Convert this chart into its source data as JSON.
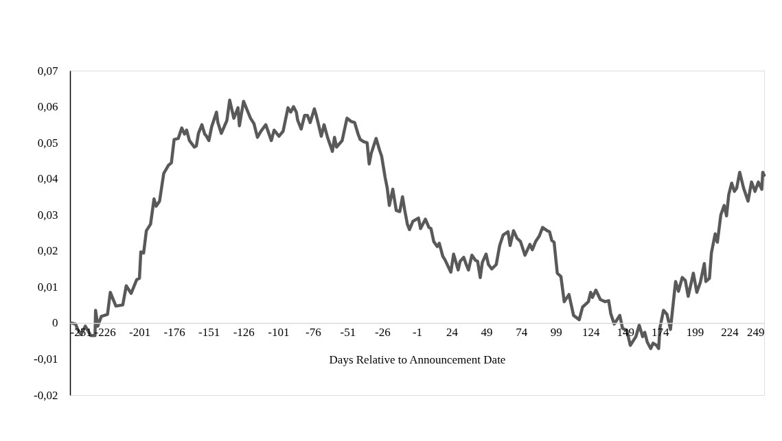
{
  "chart_data": {
    "type": "line",
    "xlabel": "Days Relative to Announcement Date",
    "x": [
      -250,
      -247,
      -245.5,
      -243,
      -240,
      -236,
      -233,
      -232.6,
      -231,
      -228.5,
      -224,
      -222,
      -218,
      -213,
      -210.5,
      -207,
      -203,
      -201,
      -200,
      -198,
      -196,
      -193,
      -190.5,
      -189,
      -186.5,
      -183.5,
      -180,
      -178,
      -176,
      -173,
      -170.5,
      -168.5,
      -167,
      -165,
      -161.5,
      -160,
      -158.5,
      -156,
      -154,
      -153,
      -151,
      -149,
      -145.5,
      -144.5,
      -142,
      -138,
      -136,
      -133,
      -130,
      -129,
      -126,
      -122.5,
      -121,
      -118.5,
      -116,
      -113.5,
      -110,
      -106,
      -104,
      -100.5,
      -97.5,
      -94,
      -92,
      -90,
      -88,
      -87,
      -84.5,
      -82,
      -80,
      -78,
      -75,
      -73.5,
      -72,
      -70,
      -68,
      -65.5,
      -62,
      -60.5,
      -59,
      -55,
      -51.5,
      -48.5,
      -46,
      -43.5,
      -42,
      -39.5,
      -37,
      -35.5,
      -34,
      -30.5,
      -28,
      -26.5,
      -24,
      -22.5,
      -21,
      -18.5,
      -16,
      -13.5,
      -11.5,
      -10,
      -8,
      -6.5,
      -4,
      0,
      1.5,
      5,
      7.5,
      9,
      11,
      13.5,
      15,
      17.5,
      19,
      23.3,
      25.3,
      28.6,
      30,
      32.6,
      34.4,
      36,
      38.5,
      41,
      42.6,
      44.5,
      46,
      48.7,
      50.4,
      52.8,
      56,
      58.5,
      61,
      64.5,
      66,
      68.5,
      71,
      73.5,
      76.7,
      80.3,
      82,
      84.4,
      87,
      89.4,
      92.7,
      94.4,
      96,
      97.7,
      100,
      102.6,
      105,
      108.4,
      111.7,
      115.8,
      118.2,
      122.4,
      124,
      125.3,
      127.8,
      131,
      134.5,
      137,
      138.5,
      141,
      145,
      147,
      150.1,
      152.6,
      156.6,
      159,
      161.5,
      163,
      164.8,
      167.3,
      169,
      171.4,
      173,
      174,
      176.5,
      179,
      181.5,
      185.2,
      187.3,
      190,
      192.2,
      194.3,
      198,
      200.5,
      203,
      205.9,
      207,
      209.6,
      211,
      213.7,
      215.3,
      217.8,
      220.2,
      221.9,
      223.5,
      225.6,
      227.6,
      229.2,
      231.4,
      234.2,
      237.4,
      239.9,
      242.4,
      244.8,
      247.3,
      248,
      249
    ],
    "series": [
      {
        "color": "#595959",
        "values": [
          0.0,
          -0.0003,
          -0.0018,
          -0.0032,
          -0.0009,
          -0.0035,
          -0.0035,
          0.0035,
          -0.0009,
          0.0018,
          0.0024,
          0.0085,
          0.0047,
          0.005,
          0.0103,
          0.0082,
          0.012,
          0.0124,
          0.0197,
          0.0194,
          0.0256,
          0.0274,
          0.0344,
          0.0324,
          0.0338,
          0.0415,
          0.0438,
          0.0444,
          0.0509,
          0.0512,
          0.0541,
          0.0524,
          0.0535,
          0.0506,
          0.0488,
          0.0491,
          0.0526,
          0.055,
          0.0524,
          0.052,
          0.0506,
          0.0544,
          0.0585,
          0.0556,
          0.0526,
          0.0562,
          0.0618,
          0.0568,
          0.0597,
          0.0547,
          0.0615,
          0.0582,
          0.0568,
          0.0553,
          0.0515,
          0.0532,
          0.055,
          0.0506,
          0.0535,
          0.0518,
          0.0532,
          0.0597,
          0.0585,
          0.06,
          0.0585,
          0.0562,
          0.0538,
          0.0576,
          0.0576,
          0.0556,
          0.0594,
          0.0574,
          0.055,
          0.0518,
          0.055,
          0.0515,
          0.0476,
          0.0515,
          0.0488,
          0.0506,
          0.0568,
          0.0559,
          0.0556,
          0.0524,
          0.0509,
          0.0503,
          0.05,
          0.0441,
          0.0471,
          0.0512,
          0.0479,
          0.0462,
          0.0403,
          0.0374,
          0.0326,
          0.0371,
          0.0312,
          0.0309,
          0.035,
          0.0315,
          0.0274,
          0.0259,
          0.0282,
          0.0291,
          0.0262,
          0.0288,
          0.0265,
          0.0262,
          0.0226,
          0.0212,
          0.0221,
          0.0185,
          0.0176,
          0.0141,
          0.0191,
          0.0147,
          0.0171,
          0.0182,
          0.0162,
          0.0147,
          0.0188,
          0.0174,
          0.0171,
          0.0126,
          0.0168,
          0.0191,
          0.0162,
          0.015,
          0.0162,
          0.0215,
          0.0244,
          0.0253,
          0.0215,
          0.0256,
          0.0235,
          0.0226,
          0.0188,
          0.0218,
          0.0203,
          0.0226,
          0.0241,
          0.0265,
          0.0256,
          0.0253,
          0.0229,
          0.0224,
          0.0138,
          0.0129,
          0.0059,
          0.0079,
          0.0021,
          0.0009,
          0.0044,
          0.0059,
          0.0085,
          0.0071,
          0.0091,
          0.0065,
          0.0059,
          0.0062,
          0.0026,
          -0.0003,
          0.0021,
          -0.0015,
          -0.0021,
          -0.0062,
          -0.0038,
          -0.0006,
          -0.0038,
          -0.0026,
          -0.0053,
          -0.0071,
          -0.0056,
          -0.0062,
          -0.0071,
          -0.0012,
          0.0035,
          0.0024,
          -0.0018,
          0.0115,
          0.0088,
          0.0126,
          0.0118,
          0.0074,
          0.0138,
          0.0085,
          0.0112,
          0.0165,
          0.0115,
          0.0124,
          0.0194,
          0.0247,
          0.0224,
          0.03,
          0.0326,
          0.0297,
          0.0356,
          0.0388,
          0.0365,
          0.0374,
          0.0418,
          0.0374,
          0.0338,
          0.0391,
          0.0365,
          0.0391,
          0.0371,
          0.0418,
          0.041
        ]
      }
    ],
    "xlim": [
      -251,
      249
    ],
    "xticks": [
      -251,
      -226,
      -201,
      -176,
      -151,
      -126,
      -101,
      -76,
      -51,
      -26,
      -1,
      24,
      49,
      74,
      99,
      124,
      149,
      174,
      199,
      224,
      249
    ],
    "ylim": [
      -0.02,
      0.07
    ],
    "yticks": [
      {
        "value": -0.02,
        "label": "-0,02"
      },
      {
        "value": -0.01,
        "label": "-0,01"
      },
      {
        "value": 0,
        "label": "0"
      },
      {
        "value": 0.01,
        "label": "0,01"
      },
      {
        "value": 0.02,
        "label": "0,02"
      },
      {
        "value": 0.03,
        "label": "0,03"
      },
      {
        "value": 0.04,
        "label": "0,04"
      },
      {
        "value": 0.05,
        "label": "0,05"
      },
      {
        "value": 0.06,
        "label": "0,06"
      },
      {
        "value": 0.07,
        "label": "0,07"
      }
    ],
    "grid": false,
    "marker": "none",
    "line_style": "solid"
  }
}
